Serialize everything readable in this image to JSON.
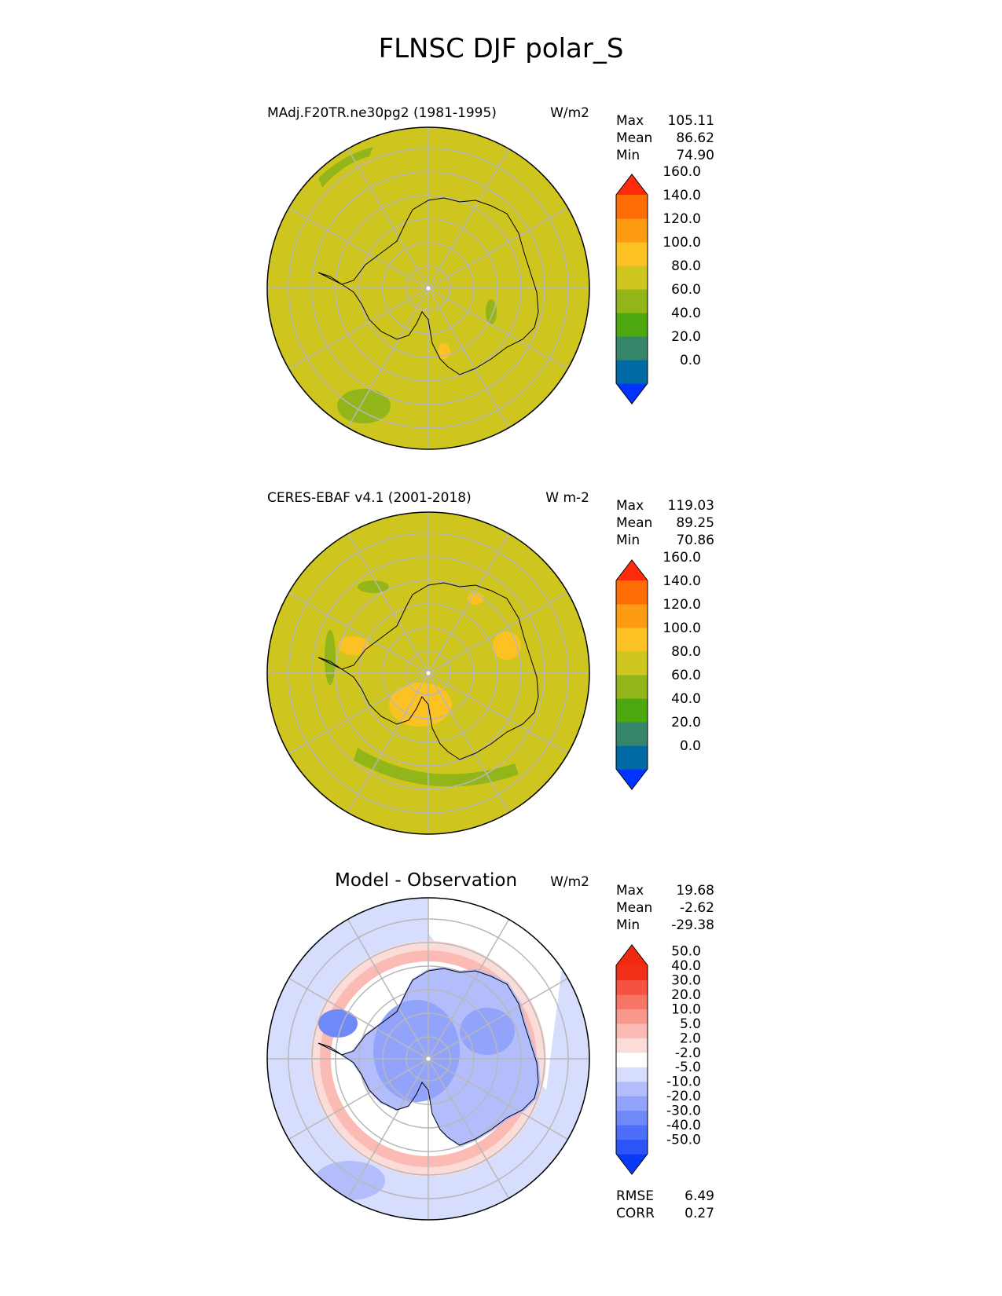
{
  "figure": {
    "title": "FLNSC DJF polar_S"
  },
  "panels": [
    {
      "title": "MAdj.F20TR.ne30pg2 (1981-1995)",
      "units": "W/m2",
      "stats": [
        {
          "label": "Max",
          "value": "105.11"
        },
        {
          "label": "Mean",
          "value": "86.62"
        },
        {
          "label": "Min",
          "value": "74.90"
        }
      ]
    },
    {
      "title": "CERES-EBAF v4.1 (2001-2018)",
      "units": "W m-2",
      "stats": [
        {
          "label": "Max",
          "value": "119.03"
        },
        {
          "label": "Mean",
          "value": "89.25"
        },
        {
          "label": "Min",
          "value": "70.86"
        }
      ]
    },
    {
      "title": "Model - Observation",
      "units": "W/m2",
      "stats": [
        {
          "label": "Max",
          "value": "19.68"
        },
        {
          "label": "Mean",
          "value": "-2.62"
        },
        {
          "label": "Min",
          "value": "-29.38"
        }
      ],
      "metrics": [
        {
          "label": "RMSE",
          "value": "6.49"
        },
        {
          "label": "CORR",
          "value": "0.27"
        }
      ]
    }
  ],
  "chart_data": [
    {
      "type": "heatmap",
      "projection": "south polar stereographic",
      "background_value_range": "80.0-100.0",
      "colorbar": {
        "ticks": [
          "0.0",
          "20.0",
          "40.0",
          "60.0",
          "80.0",
          "100.0",
          "120.0",
          "140.0",
          "160.0"
        ],
        "colors": [
          "#0033ff",
          "#006aa5",
          "#35856a",
          "#4ca80e",
          "#92b519",
          "#cfc51f",
          "#fcc122",
          "#fd9b12",
          "#fe6c05",
          "#fe2a0a"
        ],
        "extend": "both"
      }
    },
    {
      "type": "heatmap",
      "projection": "south polar stereographic",
      "background_value_range": "80.0-100.0",
      "colorbar": {
        "ticks": [
          "0.0",
          "20.0",
          "40.0",
          "60.0",
          "80.0",
          "100.0",
          "120.0",
          "140.0",
          "160.0"
        ],
        "colors": [
          "#0033ff",
          "#006aa5",
          "#35856a",
          "#4ca80e",
          "#92b519",
          "#cfc51f",
          "#fcc122",
          "#fd9b12",
          "#fe6c05",
          "#fe2a0a"
        ],
        "extend": "both"
      }
    },
    {
      "type": "heatmap",
      "projection": "south polar stereographic",
      "colorbar": {
        "ticks": [
          "-50.0",
          "-40.0",
          "-30.0",
          "-20.0",
          "-10.0",
          "-5.0",
          "-2.0",
          "2.0",
          "5.0",
          "10.0",
          "20.0",
          "30.0",
          "40.0",
          "50.0"
        ],
        "colors": [
          "#0a3af5",
          "#2c54f7",
          "#4d6ef8",
          "#6f89f9",
          "#91a3fa",
          "#b3bdfb",
          "#d7ddfd",
          "#ffffff",
          "#fcdcd8",
          "#fbbab3",
          "#f9978d",
          "#f77566",
          "#f55240",
          "#f22f19",
          "#f02a0f"
        ],
        "extend": "both"
      }
    }
  ]
}
